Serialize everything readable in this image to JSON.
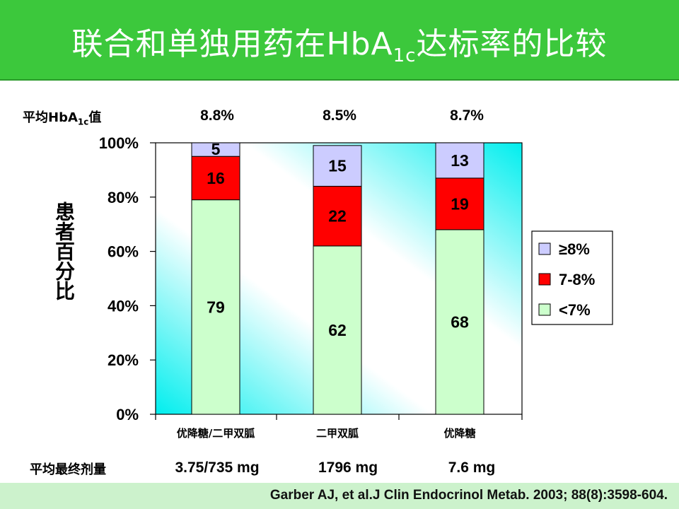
{
  "title": {
    "prefix": "联合和单独用药在HbA",
    "sub": "1c",
    "suffix": "达标率的比较"
  },
  "mean_hba1c": {
    "label_prefix": "平均HbA",
    "label_sub": "1c",
    "label_suffix": "值",
    "values": [
      "8.8%",
      "8.5%",
      "8.7%"
    ]
  },
  "mean_dose": {
    "label": "平均最终剂量",
    "values": [
      "3.75/735 mg",
      "1796 mg",
      "7.6 mg"
    ]
  },
  "citation": "Garber AJ, et al.J Clin Endocrinol Metab. 2003; 88(8):3598-604.",
  "colors": {
    "header": "#3cc83c",
    "footer": "#ccf2cc",
    "lt7": "#ccffcc",
    "7to8": "#ff0000",
    "ge8": "#ccccff",
    "plot_bg_edge": "#00eeee"
  },
  "chart_data": {
    "type": "bar",
    "stacked": true,
    "categories": [
      "优降糖/二甲双胍",
      "二甲双胍",
      "优降糖"
    ],
    "series": [
      {
        "name": "<7%",
        "values": [
          79,
          62,
          68
        ]
      },
      {
        "name": "7-8%",
        "values": [
          16,
          22,
          19
        ]
      },
      {
        "name": "≥8%",
        "values": [
          5,
          15,
          13
        ]
      }
    ],
    "ylabel": "患者百分比",
    "ylim": [
      0,
      100
    ],
    "y_ticks": [
      "0%",
      "20%",
      "40%",
      "60%",
      "80%",
      "100%"
    ],
    "legend": {
      "placement": "right",
      "entries": [
        "≥8%",
        "7-8%",
        "<7%"
      ]
    },
    "grid": false
  }
}
